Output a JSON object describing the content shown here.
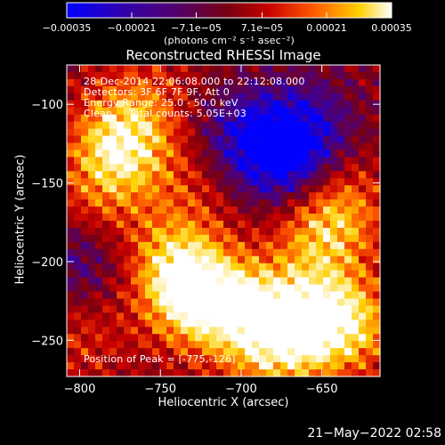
{
  "chart_data": {
    "type": "heatmap",
    "title": "Reconstructed RHESSI Image",
    "xlabel": "Heliocentric X (arcsec)",
    "ylabel": "Heliocentric Y (arcsec)",
    "xlim": [
      -808,
      -614
    ],
    "ylim": [
      -273,
      -75
    ],
    "xticks": [
      -800,
      -750,
      -700,
      -650
    ],
    "yticks": [
      -100,
      -150,
      -200,
      -250
    ],
    "xtick_labels": [
      "−800",
      "−750",
      "−700",
      "−650"
    ],
    "ytick_labels": [
      "−100",
      "−150",
      "−200",
      "−250"
    ],
    "colorbar": {
      "range": [
        -0.00035,
        0.00035
      ],
      "ticks": [
        -0.00035,
        -0.00021,
        -7.1e-05,
        7.1e-05,
        0.00021,
        0.00035
      ],
      "tick_labels": [
        "−0.00035",
        "−0.00021",
        "−7.1e−05",
        "7.1e−05",
        "0.00021",
        "0.00035"
      ],
      "label": "(photons cm⁻² s⁻¹ asec⁻²)",
      "colors": [
        "#0000ff",
        "#3300aa",
        "#550066",
        "#7a0010",
        "#c80000",
        "#ff5a00",
        "#ffd000",
        "#ffffff"
      ]
    },
    "info_lines": [
      "28-Dec-2014 22:06:08.000 to 22:12:08.000",
      "Detectors: 3F 6F 7F 9F, Att 0",
      "Energy Range: 25.0 - 50.0 keV",
      "Clean     Total counts: 5.05E+03"
    ],
    "peak_label": "Position of Peak = [-775,-126]",
    "peak": [
      -775,
      -126
    ],
    "features": [
      {
        "x": -775,
        "y": -126,
        "amp": 0.95
      },
      {
        "x": -740,
        "y": -200,
        "amp": 0.75
      },
      {
        "x": -730,
        "y": -225,
        "amp": 0.8
      },
      {
        "x": -700,
        "y": -230,
        "amp": 0.7
      },
      {
        "x": -665,
        "y": -235,
        "amp": 0.75
      },
      {
        "x": -635,
        "y": -240,
        "amp": 0.85
      },
      {
        "x": -650,
        "y": -185,
        "amp": 0.6
      },
      {
        "x": -640,
        "y": -160,
        "amp": 0.5
      },
      {
        "x": -680,
        "y": -258,
        "amp": 0.55
      },
      {
        "x": -790,
        "y": -165,
        "amp": 0.45
      },
      {
        "x": -760,
        "y": -95,
        "amp": 0.35
      },
      {
        "x": -730,
        "y": -150,
        "amp": 0.3
      },
      {
        "x": -800,
        "y": -250,
        "amp": 0.3
      }
    ],
    "negative_regions": [
      {
        "x": -672,
        "y": -135,
        "amp": -0.9
      },
      {
        "x": -700,
        "y": -120,
        "amp": -0.55
      },
      {
        "x": -660,
        "y": -112,
        "amp": -0.45
      },
      {
        "x": -800,
        "y": -195,
        "amp": -0.5
      }
    ]
  },
  "timestamp": "21−May−2022 02:58"
}
